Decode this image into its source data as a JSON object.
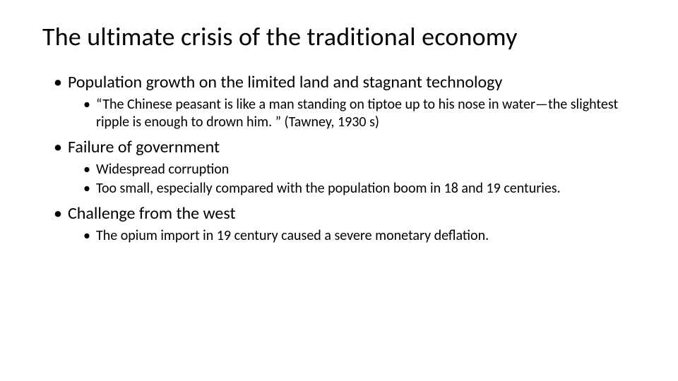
{
  "title": "The ultimate crisis of the traditional economy",
  "points": [
    {
      "text": "Population growth on the limited land and stagnant technology",
      "sub": [
        "“The Chinese peasant is like a man standing on tiptoe up to his nose in water—the slightest ripple is enough to drown him. ” (Tawney, 1930 s)"
      ]
    },
    {
      "text": "Failure of government",
      "sub": [
        "Widespread corruption",
        "Too small, especially compared with the population boom in 18 and 19 centuries."
      ]
    },
    {
      "text": "Challenge from the west",
      "sub": [
        "The opium import in 19 century caused a severe monetary deflation."
      ]
    }
  ],
  "colors": {
    "background": "#ffffff",
    "text": "#000000"
  },
  "typography": {
    "title_fontsize": 36,
    "level1_fontsize": 24,
    "level2_fontsize": 20,
    "font_family": "Calibri"
  }
}
